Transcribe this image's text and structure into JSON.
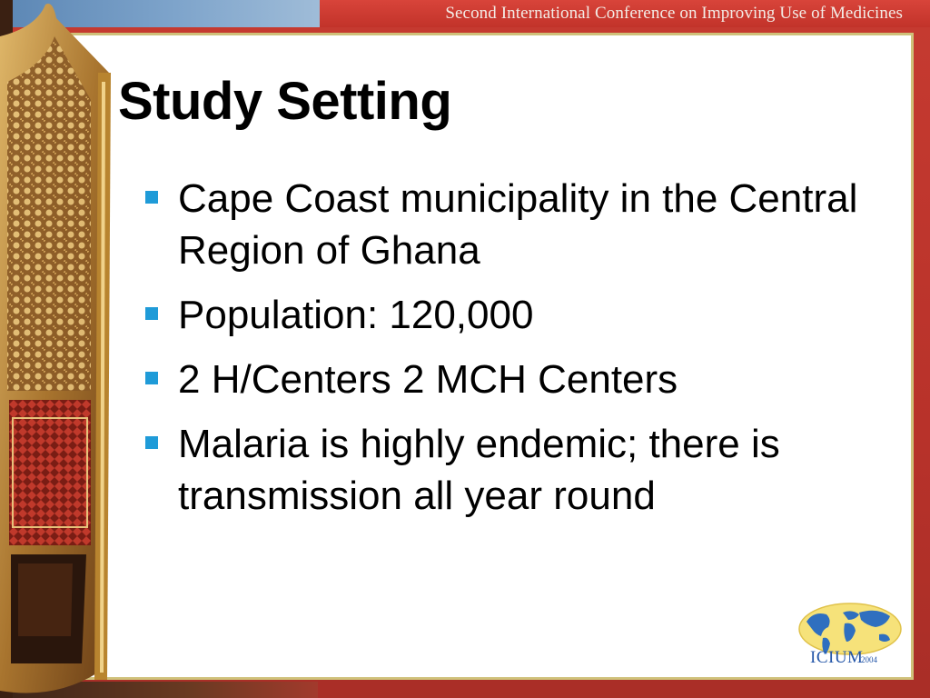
{
  "header": {
    "conference_title": "Second International Conference on Improving Use of Medicines"
  },
  "slide": {
    "title": "Study Setting",
    "bullets": [
      "Cape Coast municipality in the Central Region of Ghana",
      "Population: 120,000",
      "2 H/Centers 2 MCH Centers",
      "Malaria is highly endemic; there is transmission all year round"
    ]
  },
  "logo": {
    "text": "ICIUM",
    "year": "2004",
    "icon": "world-map-logo-icon"
  },
  "colors": {
    "banner_red": "#c9342a",
    "bullet_blue": "#1f9bd8",
    "panel_border": "#cfc17a",
    "logo_blue": "#2456a8",
    "logo_yellow": "#f2d64a"
  }
}
